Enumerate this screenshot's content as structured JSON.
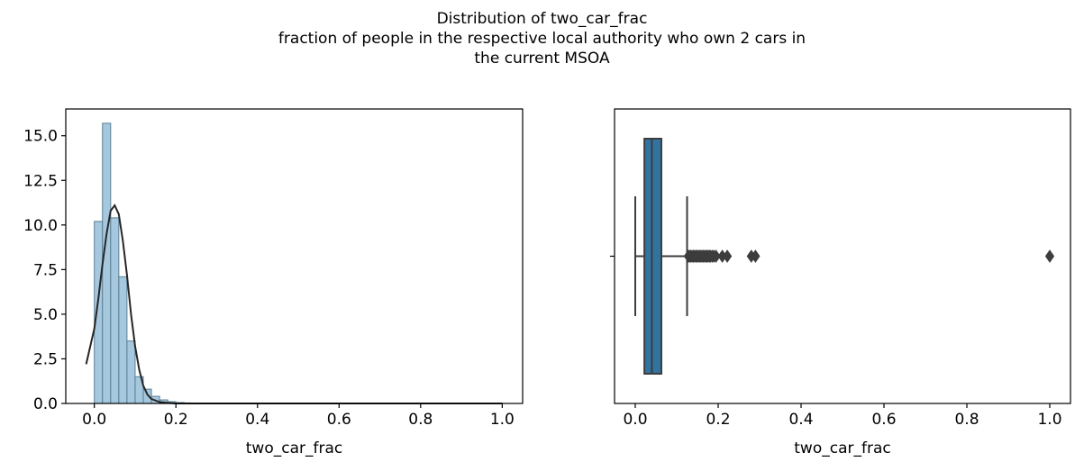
{
  "figure": {
    "title_lines": [
      "Distribution of two_car_frac",
      "fraction of people in the respective local authority who own 2 cars in",
      "the current MSOA"
    ]
  },
  "colors": {
    "hist_fill": "#a6c8df",
    "hist_edge": "#5b7f93",
    "kde_line": "#262626",
    "box_fill": "#3274a1",
    "box_line": "#3d3d3d",
    "axis": "#000000"
  },
  "chart_data": [
    {
      "type": "bar",
      "subtype": "histogram-with-kde",
      "xlabel": "two_car_frac",
      "ylabel": "",
      "xlim": [
        -0.07,
        1.05
      ],
      "ylim": [
        0,
        16.5
      ],
      "x_ticks": [
        0.0,
        0.2,
        0.4,
        0.6,
        0.8,
        1.0
      ],
      "x_tick_labels": [
        "0.0",
        "0.2",
        "0.4",
        "0.6",
        "0.8",
        "1.0"
      ],
      "y_ticks": [
        0.0,
        2.5,
        5.0,
        7.5,
        10.0,
        12.5,
        15.0
      ],
      "y_tick_labels": [
        "0.0",
        "2.5",
        "5.0",
        "7.5",
        "10.0",
        "12.5",
        "15.0"
      ],
      "bin_width": 0.02,
      "bins_start": [
        0.0,
        0.02,
        0.04,
        0.06,
        0.08,
        0.1,
        0.12,
        0.14,
        0.16,
        0.18,
        0.2,
        0.22
      ],
      "values": [
        10.2,
        15.7,
        10.4,
        7.1,
        3.5,
        1.5,
        0.8,
        0.4,
        0.2,
        0.1,
        0.05,
        0.03
      ],
      "kde": {
        "x": [
          -0.02,
          0.0,
          0.01,
          0.02,
          0.03,
          0.04,
          0.05,
          0.06,
          0.07,
          0.08,
          0.09,
          0.1,
          0.11,
          0.12,
          0.13,
          0.14,
          0.16,
          0.18,
          0.2,
          0.3,
          0.5,
          1.0
        ],
        "y": [
          2.2,
          4.2,
          5.9,
          7.8,
          9.5,
          10.8,
          11.1,
          10.6,
          9.1,
          7.2,
          5.0,
          3.2,
          1.9,
          1.0,
          0.5,
          0.25,
          0.08,
          0.03,
          0.0,
          0.0,
          0.0,
          0.0
        ]
      },
      "grid": false
    },
    {
      "type": "box",
      "xlabel": "two_car_frac",
      "ylabel": "",
      "xlim": [
        -0.05,
        1.05
      ],
      "x_ticks": [
        0.0,
        0.2,
        0.4,
        0.6,
        0.8,
        1.0
      ],
      "x_tick_labels": [
        "0.0",
        "0.2",
        "0.4",
        "0.6",
        "0.8",
        "1.0"
      ],
      "q1": 0.022,
      "median": 0.04,
      "q3": 0.063,
      "whisker_low": 0.0,
      "whisker_high": 0.125,
      "outliers": [
        0.128,
        0.131,
        0.134,
        0.137,
        0.14,
        0.143,
        0.146,
        0.149,
        0.152,
        0.155,
        0.158,
        0.161,
        0.164,
        0.167,
        0.17,
        0.173,
        0.176,
        0.179,
        0.182,
        0.186,
        0.19,
        0.195,
        0.21,
        0.222,
        0.28,
        0.29,
        1.0
      ],
      "grid": false
    }
  ]
}
